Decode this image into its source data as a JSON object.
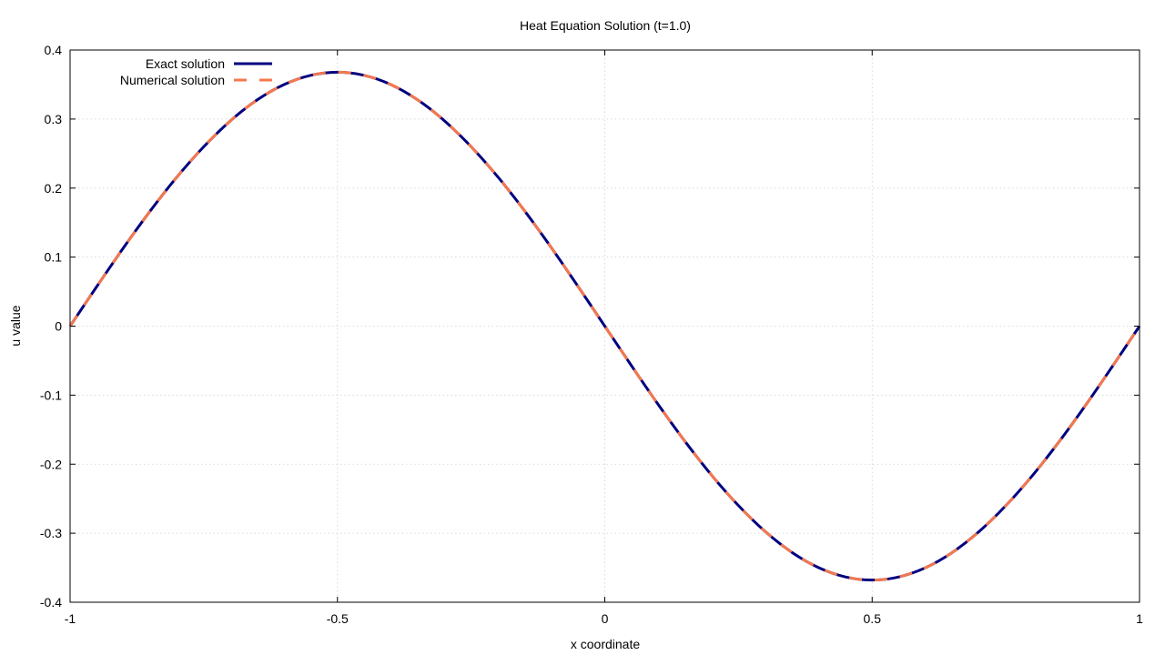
{
  "chart_data": {
    "type": "line",
    "title": "Heat Equation Solution (t=1.0)",
    "xlabel": "x coordinate",
    "ylabel": "u value",
    "xlim": [
      -1,
      1
    ],
    "ylim": [
      -0.4,
      0.4
    ],
    "grid": true,
    "legend_position": "top-left",
    "x_ticks": [
      -1,
      -0.5,
      0,
      0.5,
      1
    ],
    "x_tick_labels": [
      "-1",
      "-0.5",
      "0",
      "0.5",
      "1"
    ],
    "y_ticks": [
      -0.4,
      -0.3,
      -0.2,
      -0.1,
      0,
      0.1,
      0.2,
      0.3,
      0.4
    ],
    "y_tick_labels": [
      "-0.4",
      "-0.3",
      "-0.2",
      "-0.1",
      "0",
      "0.1",
      "0.2",
      "0.3",
      "0.4"
    ],
    "x": [
      -1.0,
      -0.95,
      -0.9,
      -0.85,
      -0.8,
      -0.75,
      -0.7,
      -0.65,
      -0.6,
      -0.55,
      -0.5,
      -0.45,
      -0.4,
      -0.35,
      -0.3,
      -0.25,
      -0.2,
      -0.15,
      -0.1,
      -0.05,
      0.0,
      0.05,
      0.1,
      0.15,
      0.2,
      0.25,
      0.3,
      0.35,
      0.4,
      0.45,
      0.5,
      0.55,
      0.6,
      0.65,
      0.7,
      0.75,
      0.8,
      0.85,
      0.9,
      0.95,
      1.0
    ],
    "series": [
      {
        "name": "Exact solution",
        "color": "#00007f",
        "style": "solid",
        "values": [
          0.0,
          0.0575,
          0.1137,
          0.167,
          0.2162,
          0.26,
          0.2976,
          0.3278,
          0.3499,
          0.3633,
          0.3679,
          0.3633,
          0.3499,
          0.3278,
          0.2976,
          0.26,
          0.2162,
          0.167,
          0.1137,
          0.0575,
          0.0,
          -0.0575,
          -0.1137,
          -0.167,
          -0.2162,
          -0.26,
          -0.2976,
          -0.3278,
          -0.3499,
          -0.3633,
          -0.3679,
          -0.3633,
          -0.3499,
          -0.3278,
          -0.2976,
          -0.26,
          -0.2162,
          -0.167,
          -0.1137,
          -0.0575,
          0.0
        ]
      },
      {
        "name": "Numerical solution",
        "color": "#f4784d",
        "style": "dashed",
        "values": [
          0.0,
          0.0575,
          0.1137,
          0.167,
          0.2162,
          0.26,
          0.2976,
          0.3278,
          0.3499,
          0.3633,
          0.3679,
          0.3633,
          0.3499,
          0.3278,
          0.2976,
          0.26,
          0.2162,
          0.167,
          0.1137,
          0.0575,
          0.0,
          -0.0575,
          -0.1137,
          -0.167,
          -0.2162,
          -0.26,
          -0.2976,
          -0.3278,
          -0.3499,
          -0.3633,
          -0.3679,
          -0.3633,
          -0.3499,
          -0.3278,
          -0.2976,
          -0.26,
          -0.2162,
          -0.167,
          -0.1137,
          -0.0575,
          0.0
        ]
      }
    ]
  }
}
